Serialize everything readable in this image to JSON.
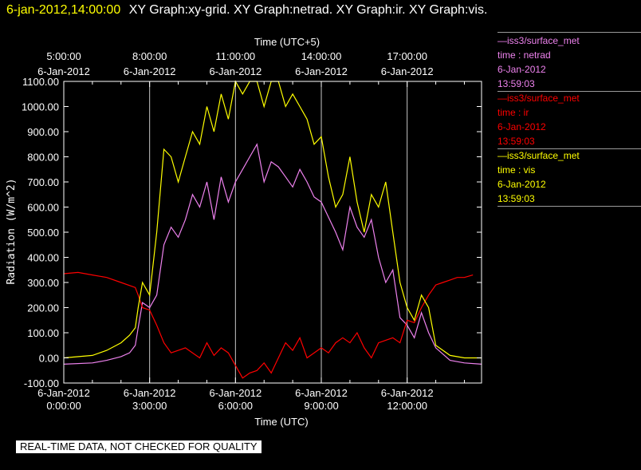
{
  "header": {
    "time": "6-jan-2012,14:00:00",
    "graphs": "XY Graph:xy-grid.  XY Graph:netrad.  XY Graph:ir.  XY Graph:vis."
  },
  "legend": [
    {
      "source": "iss3/surface_met",
      "field": "time : netrad",
      "date": "6-Jan-2012",
      "time": "13:59:03",
      "color": "#ee82ee"
    },
    {
      "source": "iss3/surface_met",
      "field": "time : ir",
      "date": "6-Jan-2012",
      "time": "13:59:03",
      "color": "#ff0000"
    },
    {
      "source": "iss3/surface_met",
      "field": "time : vis",
      "date": "6-Jan-2012",
      "time": "13:59:03",
      "color": "#ffff00"
    }
  ],
  "footer_note": "REAL-TIME DATA, NOT CHECKED FOR QUALITY",
  "chart_data": {
    "type": "line",
    "xlabel": "Time (UTC)",
    "x2label": "Time (UTC+5)",
    "ylabel": "Radiation (W/m^2)",
    "xlim": [
      0,
      14.6
    ],
    "ylim": [
      -100,
      1100
    ],
    "yticks": [
      -100,
      0,
      100,
      200,
      300,
      400,
      500,
      600,
      700,
      800,
      900,
      1000,
      1100
    ],
    "ytick_labels": [
      "-100.00",
      "0.00",
      "100.00",
      "200.00",
      "300.00",
      "400.00",
      "500.00",
      "600.00",
      "700.00",
      "800.00",
      "900.00",
      "1000.00",
      "1100.00"
    ],
    "xticks_bottom": [
      {
        "x": 0,
        "date": "6-Jan-2012",
        "time": "0:00:00"
      },
      {
        "x": 3,
        "date": "6-Jan-2012",
        "time": "3:00:00"
      },
      {
        "x": 6,
        "date": "6-Jan-2012",
        "time": "6:00:00"
      },
      {
        "x": 9,
        "date": "6-Jan-2012",
        "time": "9:00:00"
      },
      {
        "x": 12,
        "date": "6-Jan-2012",
        "time": "12:00:00"
      }
    ],
    "xticks_top": [
      {
        "x": 0,
        "time": "5:00:00",
        "date": "6-Jan-2012"
      },
      {
        "x": 3,
        "time": "8:00:00",
        "date": "6-Jan-2012"
      },
      {
        "x": 6,
        "time": "11:00:00",
        "date": "6-Jan-2012"
      },
      {
        "x": 9,
        "time": "14:00:00",
        "date": "6-Jan-2012"
      },
      {
        "x": 12,
        "time": "17:00:00",
        "date": "6-Jan-2012"
      }
    ],
    "grid": true,
    "legend_position": "right",
    "series": [
      {
        "name": "iss3/surface_met time : netrad",
        "color": "#ee82ee",
        "x": [
          0,
          1,
          1.5,
          2,
          2.3,
          2.5,
          2.6,
          2.75,
          3,
          3.25,
          3.5,
          3.75,
          4,
          4.25,
          4.5,
          4.75,
          5,
          5.25,
          5.5,
          5.75,
          6,
          6.25,
          6.5,
          6.75,
          7,
          7.25,
          7.5,
          7.75,
          8,
          8.25,
          8.5,
          8.75,
          9,
          9.25,
          9.5,
          9.75,
          10,
          10.25,
          10.5,
          10.75,
          11,
          11.25,
          11.5,
          11.75,
          12,
          12.25,
          12.5,
          12.75,
          13,
          13.5,
          14,
          14.6
        ],
        "y": [
          -25,
          -20,
          -10,
          5,
          20,
          50,
          120,
          220,
          200,
          250,
          450,
          520,
          480,
          550,
          650,
          600,
          700,
          550,
          720,
          620,
          700,
          750,
          800,
          850,
          700,
          780,
          760,
          720,
          680,
          750,
          700,
          640,
          620,
          560,
          500,
          430,
          600,
          520,
          480,
          550,
          400,
          300,
          350,
          160,
          130,
          80,
          180,
          100,
          40,
          -10,
          -20,
          -25
        ]
      },
      {
        "name": "iss3/surface_met time : ir",
        "color": "#ff0000",
        "x": [
          0,
          0.5,
          1,
          1.5,
          2,
          2.5,
          2.6,
          2.75,
          3,
          3.25,
          3.5,
          3.75,
          4,
          4.25,
          4.5,
          4.75,
          5,
          5.25,
          5.5,
          5.75,
          6,
          6.25,
          6.5,
          6.75,
          7,
          7.25,
          7.5,
          7.75,
          8,
          8.25,
          8.5,
          8.75,
          9,
          9.25,
          9.5,
          9.75,
          10,
          10.25,
          10.5,
          10.75,
          11,
          11.25,
          11.5,
          11.75,
          12,
          12.25,
          12.5,
          12.75,
          13,
          13.25,
          13.5,
          13.75,
          14,
          14.3
        ],
        "y": [
          335,
          340,
          330,
          320,
          300,
          280,
          250,
          200,
          190,
          130,
          60,
          20,
          30,
          40,
          20,
          0,
          60,
          10,
          40,
          20,
          -30,
          -80,
          -60,
          -50,
          -20,
          -60,
          0,
          60,
          30,
          80,
          0,
          20,
          40,
          20,
          60,
          80,
          60,
          100,
          40,
          0,
          60,
          70,
          80,
          60,
          150,
          140,
          200,
          250,
          290,
          300,
          310,
          320,
          320,
          330
        ]
      },
      {
        "name": "iss3/surface_met time : vis",
        "color": "#ffff00",
        "x": [
          0,
          1,
          1.5,
          2,
          2.3,
          2.5,
          2.6,
          2.75,
          3,
          3.25,
          3.5,
          3.75,
          4,
          4.25,
          4.5,
          4.75,
          5,
          5.25,
          5.5,
          5.75,
          6,
          6.25,
          6.5,
          6.75,
          7,
          7.25,
          7.5,
          7.75,
          8,
          8.25,
          8.5,
          8.75,
          9,
          9.25,
          9.5,
          9.75,
          10,
          10.25,
          10.5,
          10.75,
          11,
          11.25,
          11.5,
          11.75,
          12,
          12.25,
          12.5,
          12.75,
          13,
          13.5,
          14,
          14.6
        ],
        "y": [
          0,
          10,
          30,
          60,
          90,
          120,
          200,
          300,
          250,
          500,
          830,
          800,
          700,
          800,
          900,
          850,
          1000,
          900,
          1050,
          950,
          1100,
          1050,
          1100,
          1100,
          1000,
          1100,
          1100,
          1000,
          1050,
          1000,
          950,
          850,
          880,
          720,
          600,
          650,
          800,
          620,
          500,
          650,
          600,
          700,
          500,
          300,
          200,
          150,
          250,
          200,
          50,
          10,
          0,
          0
        ]
      }
    ]
  }
}
